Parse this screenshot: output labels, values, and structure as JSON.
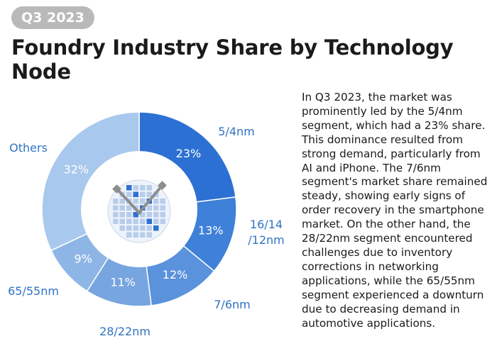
{
  "badge": "Q3 2023",
  "title": "Foundry Industry Share by Technology Node",
  "description": "In Q3 2023, the market was prominently led by the 5/4nm segment, which had a 23% share. This dominance resulted from strong demand, particularly from AI and iPhone. The 7/6nm segment's market share remained steady, showing early signs of order recovery in the smartphone market. On the other hand, the 28/22nm segment encountered challenges due to inventory corrections in networking applications, while the 65/55nm segment experienced a downturn due to decreasing demand in automotive applications.",
  "colors": {
    "label_text": "#2f73c2",
    "badge_bg": "#b9b9b9"
  },
  "chart_data": {
    "type": "pie",
    "variant": "donut",
    "center_icon": "wafer-clock-icon",
    "slices": [
      {
        "label": "5/4nm",
        "label_lines": [
          "5/4nm"
        ],
        "value": 23,
        "value_label": "23%",
        "color": "#2d70d3"
      },
      {
        "label": "16/14/12nm",
        "label_lines": [
          "16/14",
          "/12nm"
        ],
        "value": 13,
        "value_label": "13%",
        "color": "#3f80d8"
      },
      {
        "label": "7/6nm",
        "label_lines": [
          "7/6nm"
        ],
        "value": 12,
        "value_label": "12%",
        "color": "#5a92dc"
      },
      {
        "label": "28/22nm",
        "label_lines": [
          "28/22nm"
        ],
        "value": 11,
        "value_label": "11%",
        "color": "#77a5e0"
      },
      {
        "label": "65/55nm",
        "label_lines": [
          "65/55nm"
        ],
        "value": 9,
        "value_label": "9%",
        "color": "#8db6e6"
      },
      {
        "label": "Others",
        "label_lines": [
          "Others"
        ],
        "value": 32,
        "value_label": "32%",
        "color": "#a8c8ee"
      }
    ]
  }
}
